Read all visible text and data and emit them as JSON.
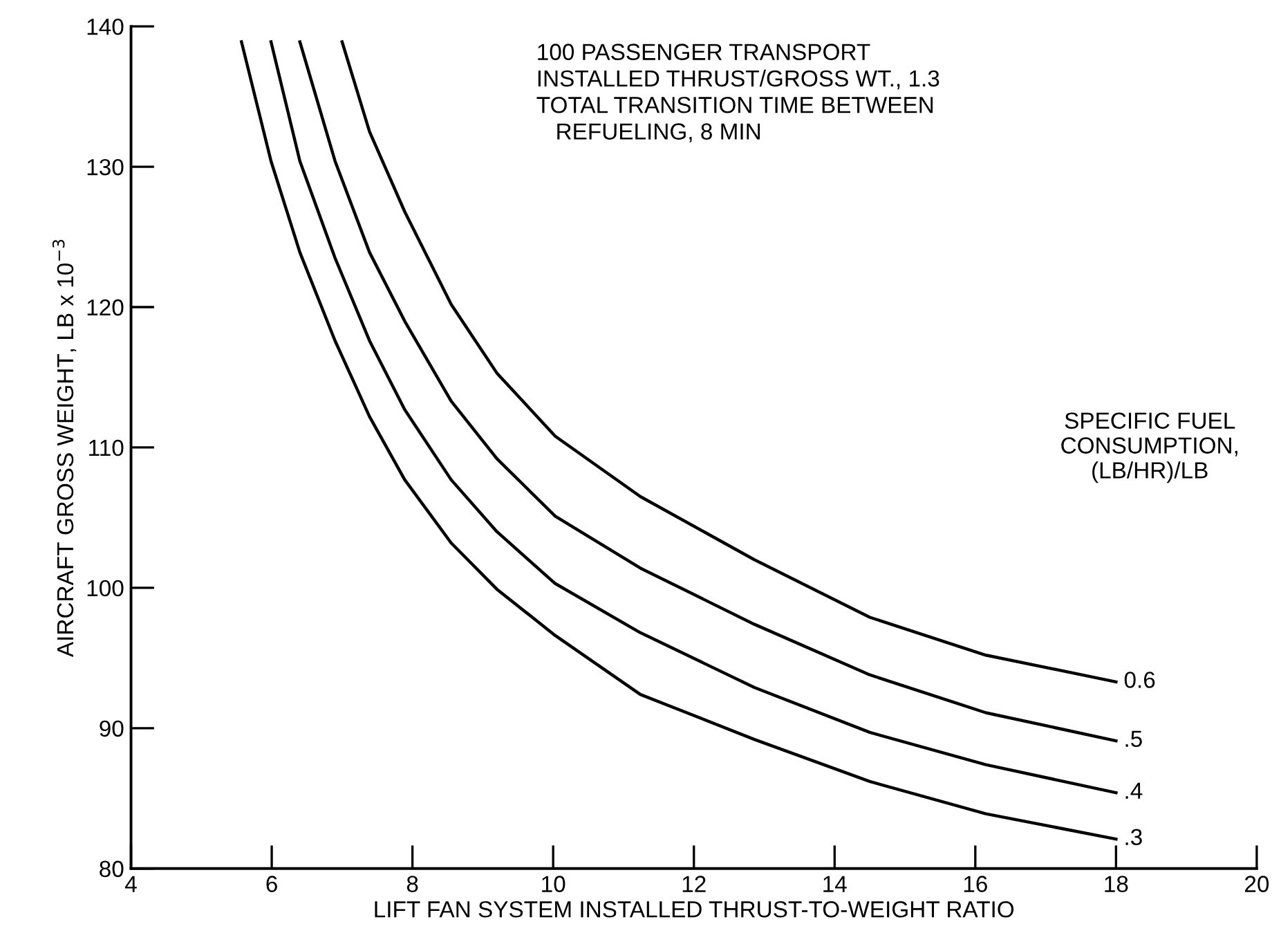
{
  "chart_data": {
    "type": "line",
    "xlabel": "LIFT FAN SYSTEM INSTALLED THRUST-TO-WEIGHT RATIO",
    "ylabel": "AIRCRAFT GROSS WEIGHT, LB x 10$^{−3}$",
    "legend_title": "SPECIFIC FUEL\nCONSUMPTION,\n(LB/HR)/LB",
    "annotations": [
      "100 PASSENGER TRANSPORT\nINSTALLED THRUST/GROSS WT., 1.3\nTOTAL TRANSITION TIME BETWEEN\n   REFUELING, 8 MIN"
    ],
    "xlim": [
      4,
      20
    ],
    "ylim": [
      80,
      140
    ],
    "xticks": [
      4,
      6,
      8,
      10,
      12,
      14,
      16,
      18,
      20
    ],
    "yticks": [
      80,
      90,
      100,
      110,
      120,
      130,
      140
    ],
    "grid": false,
    "legend": false,
    "marker": "none",
    "line_style": "solid",
    "series": [
      {
        "name": "0.6",
        "color": "#000000",
        "x": [
          7.0,
          7.39,
          7.89,
          8.55,
          9.2,
          10.03,
          11.24,
          12.86,
          14.5,
          16.15,
          18
        ],
        "values": [
          138.9,
          132.5,
          126.8,
          120.2,
          115.3,
          110.8,
          106.5,
          102.0,
          97.9,
          95.2,
          93.3
        ]
      },
      {
        "name": ".5",
        "color": "#000000",
        "x": [
          6.4,
          6.9,
          7.39,
          7.89,
          8.55,
          9.2,
          10.03,
          11.24,
          12.86,
          14.5,
          16.15,
          18
        ],
        "values": [
          138.9,
          130.4,
          123.9,
          119.0,
          113.3,
          109.2,
          105.1,
          101.4,
          97.4,
          93.8,
          91.1,
          89.1
        ]
      },
      {
        "name": ".4",
        "color": "#000000",
        "x": [
          5.99,
          6.4,
          6.9,
          7.39,
          7.89,
          8.55,
          9.2,
          10.03,
          11.24,
          12.86,
          14.5,
          16.15,
          18
        ],
        "values": [
          138.9,
          130.4,
          123.5,
          117.6,
          112.7,
          107.7,
          104.0,
          100.3,
          96.8,
          92.9,
          89.7,
          87.4,
          85.4
        ]
      },
      {
        "name": ".3",
        "color": "#000000",
        "x": [
          5.57,
          5.99,
          6.4,
          6.9,
          7.39,
          7.89,
          8.55,
          9.2,
          10.03,
          11.24,
          12.86,
          14.5,
          16.15,
          18
        ],
        "values": [
          138.9,
          130.4,
          123.9,
          117.6,
          112.2,
          107.7,
          103.2,
          99.9,
          96.6,
          92.4,
          89.2,
          86.2,
          83.9,
          82.1
        ]
      }
    ]
  }
}
